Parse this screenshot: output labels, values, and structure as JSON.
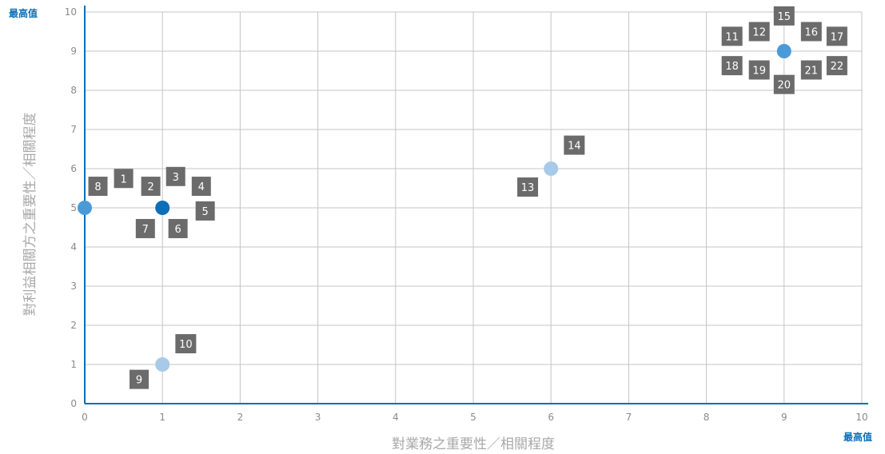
{
  "chart_data": {
    "type": "scatter",
    "xlabel": "對業務之重要性／相關程度",
    "ylabel": "對利益相關方之重要性／相關程度",
    "x_max_label": "最高值",
    "y_max_label": "最高值",
    "xlim": [
      0,
      10
    ],
    "ylim": [
      0,
      10
    ],
    "x_ticks": [
      "0",
      "1",
      "2",
      "3",
      "4",
      "5",
      "6",
      "7",
      "8",
      "9",
      "10"
    ],
    "y_ticks": [
      "0",
      "1",
      "2",
      "3",
      "4",
      "5",
      "6",
      "7",
      "8",
      "9",
      "10"
    ],
    "grid": true,
    "points": [
      {
        "x": 0,
        "y": 5,
        "color": "#4a9ad8"
      },
      {
        "x": 1,
        "y": 5,
        "color": "#0a6fb8"
      },
      {
        "x": 1,
        "y": 1,
        "color": "#a9c9e8"
      },
      {
        "x": 6,
        "y": 6,
        "color": "#a9c9e8"
      },
      {
        "x": 9,
        "y": 9,
        "color": "#4a9ad8"
      }
    ],
    "labels": [
      {
        "text": "1",
        "x": 0.5,
        "y": 5.75
      },
      {
        "text": "2",
        "x": 0.85,
        "y": 5.55
      },
      {
        "text": "3",
        "x": 1.17,
        "y": 5.8
      },
      {
        "text": "4",
        "x": 1.5,
        "y": 5.55
      },
      {
        "text": "5",
        "x": 1.55,
        "y": 4.92
      },
      {
        "text": "6",
        "x": 1.2,
        "y": 4.47
      },
      {
        "text": "7",
        "x": 0.78,
        "y": 4.47
      },
      {
        "text": "8",
        "x": 0.17,
        "y": 5.55
      },
      {
        "text": "9",
        "x": 0.7,
        "y": 0.62
      },
      {
        "text": "10",
        "x": 1.3,
        "y": 1.53
      },
      {
        "text": "11",
        "x": 8.33,
        "y": 9.38
      },
      {
        "text": "12",
        "x": 8.68,
        "y": 9.5
      },
      {
        "text": "13",
        "x": 5.7,
        "y": 5.53
      },
      {
        "text": "14",
        "x": 6.3,
        "y": 6.6
      },
      {
        "text": "15",
        "x": 9.0,
        "y": 9.9
      },
      {
        "text": "16",
        "x": 9.35,
        "y": 9.5
      },
      {
        "text": "17",
        "x": 9.68,
        "y": 9.38
      },
      {
        "text": "18",
        "x": 8.33,
        "y": 8.63
      },
      {
        "text": "19",
        "x": 8.68,
        "y": 8.52
      },
      {
        "text": "20",
        "x": 9.0,
        "y": 8.15
      },
      {
        "text": "21",
        "x": 9.35,
        "y": 8.52
      },
      {
        "text": "22",
        "x": 9.68,
        "y": 8.63
      }
    ],
    "colors": {
      "axis": "#0a6fb8",
      "grid": "#c4c4c4",
      "label_bg": "#6b6b6b",
      "label_text": "#ffffff"
    }
  }
}
